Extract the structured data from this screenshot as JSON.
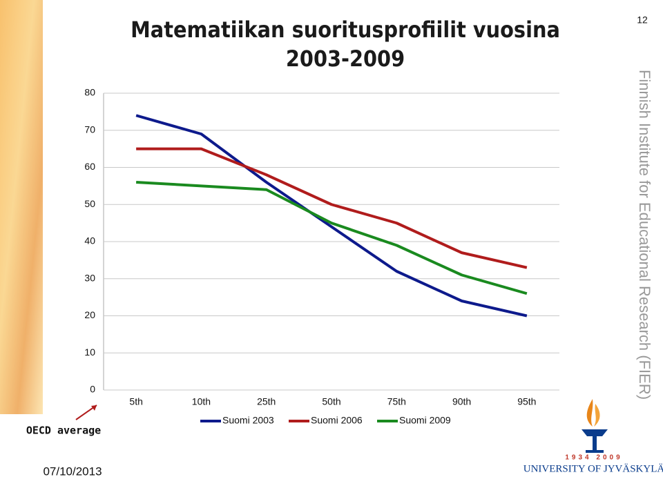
{
  "chart_data": {
    "type": "line",
    "title": "Matematiikan suoritusprofiilit vuosina 2003-2009",
    "categories": [
      "5th",
      "10th",
      "25th",
      "50th",
      "75th",
      "90th",
      "95th"
    ],
    "series": [
      {
        "name": "Suomi 2003",
        "color": "#0d1a8c",
        "values": [
          74,
          69,
          56,
          44,
          32,
          24,
          20
        ]
      },
      {
        "name": "Suomi 2006",
        "color": "#b01c1c",
        "values": [
          65,
          65,
          58,
          50,
          45,
          37,
          33
        ]
      },
      {
        "name": "Suomi 2009",
        "color": "#1a8a1f",
        "values": [
          56,
          55,
          54,
          45,
          39,
          31,
          26
        ]
      }
    ],
    "ylim": [
      0,
      80
    ],
    "yticks": [
      0,
      10,
      20,
      30,
      40,
      50,
      60,
      70,
      80
    ],
    "grid": true,
    "legend": "bottom"
  },
  "slide": {
    "page_number": "12",
    "side_text": "Finnish Institute for Educational Research (FIER)",
    "annotation": "OECD average",
    "date": "07/10/2013",
    "logo_years": "1934 2009",
    "logo_name": "UNIVERSITY OF JYVÄSKYLÄ"
  }
}
